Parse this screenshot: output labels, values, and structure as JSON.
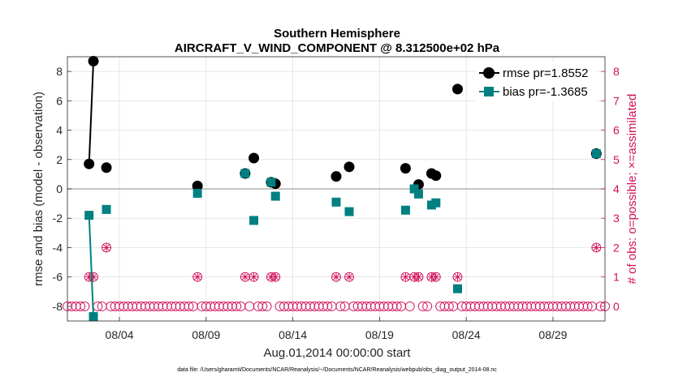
{
  "chart_data": {
    "type": "scatter",
    "title": "Southern Hemisphere",
    "subtitle": "AIRCRAFT_V_WIND_COMPONENT @ 8.312500e+02 hPa",
    "xlabel": "Aug.01,2014 00:00:00 start",
    "ylabel": "rmse and bias (model - observation)",
    "ylabel_right": "# of obs: o=possible; ×=assimilated",
    "footnote": "data file: /Users/gharamti/Documents/NCAR/Reanalysis/~/Documents/NCAR/Reanalysis/webpub/obs_diag_output_2014-08.nc",
    "xlim": [
      0,
      31
    ],
    "ylim": [
      -9,
      9
    ],
    "ylim_right": [
      -0.5,
      8.5
    ],
    "x_ticks": [
      3,
      8,
      13,
      18,
      23,
      28
    ],
    "x_tick_labels": [
      "08/04",
      "08/09",
      "08/14",
      "08/19",
      "08/24",
      "08/29"
    ],
    "y_ticks": [
      -8,
      -6,
      -4,
      -2,
      0,
      2,
      4,
      6,
      8
    ],
    "y_tick_labels": [
      "-8",
      "-6",
      "-4",
      "-2",
      "0",
      "2",
      "4",
      "6",
      "8"
    ],
    "y_ticks_right": [
      0,
      1,
      2,
      3,
      4,
      5,
      6,
      7,
      8
    ],
    "y_tick_labels_right": [
      "0",
      "1",
      "2",
      "3",
      "4",
      "5",
      "6",
      "7",
      "8"
    ],
    "zero_line": 0,
    "grid": true,
    "legend_position": "top-right",
    "colors": {
      "rmse": "#000000",
      "bias": "#008080",
      "obs": "#d0105a",
      "zero": "#b4b4b4",
      "grid": "#dcdcdc"
    },
    "series": [
      {
        "name": "rmse pr=1.8552",
        "marker": "circle",
        "points": [
          [
            1.25,
            1.7
          ],
          [
            1.5,
            8.7
          ],
          [
            2.25,
            1.45
          ],
          [
            7.5,
            0.2
          ],
          [
            10.25,
            1.05
          ],
          [
            10.75,
            2.1
          ],
          [
            11.75,
            0.45
          ],
          [
            12.0,
            0.35
          ],
          [
            15.5,
            0.85
          ],
          [
            16.25,
            1.5
          ],
          [
            19.5,
            1.4
          ],
          [
            20.25,
            0.3
          ],
          [
            21.0,
            1.05
          ],
          [
            21.25,
            0.9
          ],
          [
            22.5,
            6.8
          ],
          [
            30.5,
            2.4
          ]
        ],
        "segments": [
          [
            0,
            1
          ]
        ]
      },
      {
        "name": "bias pr=-1.3685",
        "marker": "square",
        "points": [
          [
            1.25,
            -1.8
          ],
          [
            1.5,
            -8.7
          ],
          [
            2.25,
            -1.4
          ],
          [
            7.5,
            -0.3
          ],
          [
            10.25,
            1.05
          ],
          [
            10.75,
            -2.15
          ],
          [
            11.75,
            0.45
          ],
          [
            12.0,
            -0.5
          ],
          [
            15.5,
            -0.9
          ],
          [
            16.25,
            -1.55
          ],
          [
            19.5,
            -1.45
          ],
          [
            20.0,
            0.0
          ],
          [
            20.25,
            -0.35
          ],
          [
            21.0,
            -1.1
          ],
          [
            21.25,
            -0.95
          ],
          [
            22.5,
            -6.8
          ],
          [
            30.5,
            2.4
          ]
        ],
        "segments": [
          [
            0,
            1
          ]
        ]
      },
      {
        "name": "obs count",
        "axis": "right",
        "marker": "circle-with-x",
        "interval": 0.25,
        "start": 0.0,
        "end": 31.0,
        "nonzero": [
          [
            1.25,
            1
          ],
          [
            1.5,
            1
          ],
          [
            2.25,
            2
          ],
          [
            7.5,
            1
          ],
          [
            10.25,
            1
          ],
          [
            10.75,
            1
          ],
          [
            11.75,
            1
          ],
          [
            12.0,
            1
          ],
          [
            15.5,
            1
          ],
          [
            16.25,
            1
          ],
          [
            19.5,
            1
          ],
          [
            20.0,
            1
          ],
          [
            20.25,
            1
          ],
          [
            21.0,
            1
          ],
          [
            21.25,
            1
          ],
          [
            22.5,
            1
          ],
          [
            30.5,
            2
          ]
        ]
      }
    ]
  }
}
